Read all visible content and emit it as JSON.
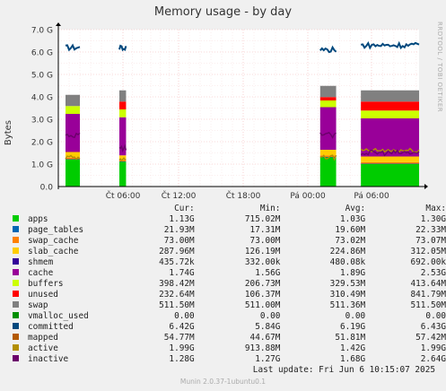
{
  "title": "Memory usage - by day",
  "side_label": "RRDTOOL / TOBI OETIKER",
  "footer": "Munin 2.0.37-1ubuntu0.1",
  "last_update": "Last update: Fri Jun  6 10:15:07 2025",
  "legend_headers": [
    "Cur:",
    "Min:",
    "Avg:",
    "Max:"
  ],
  "legend": [
    {
      "name": "apps",
      "color": "#00cc00",
      "cur": "1.13G",
      "min": "715.02M",
      "avg": "1.03G",
      "max": "1.30G"
    },
    {
      "name": "page_tables",
      "color": "#0066b3",
      "cur": "21.93M",
      "min": "17.31M",
      "avg": "19.60M",
      "max": "22.33M"
    },
    {
      "name": "swap_cache",
      "color": "#ff8000",
      "cur": "73.00M",
      "min": "73.00M",
      "avg": "73.02M",
      "max": "73.07M"
    },
    {
      "name": "slab_cache",
      "color": "#ffcc00",
      "cur": "287.96M",
      "min": "126.19M",
      "avg": "224.86M",
      "max": "312.05M"
    },
    {
      "name": "shmem",
      "color": "#330099",
      "cur": "435.72k",
      "min": "332.00k",
      "avg": "480.08k",
      "max": "692.00k"
    },
    {
      "name": "cache",
      "color": "#990099",
      "cur": "1.74G",
      "min": "1.56G",
      "avg": "1.89G",
      "max": "2.53G"
    },
    {
      "name": "buffers",
      "color": "#ccff00",
      "cur": "398.42M",
      "min": "206.73M",
      "avg": "329.53M",
      "max": "413.64M"
    },
    {
      "name": "unused",
      "color": "#ff0000",
      "cur": "232.64M",
      "min": "106.37M",
      "avg": "310.49M",
      "max": "841.79M"
    },
    {
      "name": "swap",
      "color": "#808080",
      "cur": "511.50M",
      "min": "511.00M",
      "avg": "511.36M",
      "max": "511.50M"
    },
    {
      "name": "vmalloc_used",
      "color": "#008f00",
      "cur": "0.00",
      "min": "0.00",
      "avg": "0.00",
      "max": "0.00"
    },
    {
      "name": "committed",
      "color": "#00487d",
      "cur": "6.42G",
      "min": "5.84G",
      "avg": "6.19G",
      "max": "6.43G"
    },
    {
      "name": "mapped",
      "color": "#b35a00",
      "cur": "54.77M",
      "min": "44.67M",
      "avg": "51.81M",
      "max": "57.42M"
    },
    {
      "name": "active",
      "color": "#b38f00",
      "cur": "1.99G",
      "min": "913.88M",
      "avg": "1.42G",
      "max": "1.99G"
    },
    {
      "name": "inactive",
      "color": "#6b006b",
      "cur": "1.28G",
      "min": "1.27G",
      "avg": "1.68G",
      "max": "2.64G"
    }
  ],
  "chart_data": {
    "type": "area",
    "title": "Memory usage - by day",
    "ylabel": "Bytes",
    "ylim": [
      0,
      7.0
    ],
    "y_unit": "G",
    "y_ticks": [
      "0.0",
      "1.0 G",
      "2.0 G",
      "3.0 G",
      "4.0 G",
      "5.0 G",
      "6.0 G",
      "7.0 G"
    ],
    "x_ticks": [
      "Čt 06:00",
      "Čt 12:00",
      "Čt 18:00",
      "Pá 00:00",
      "Pá 06:00"
    ],
    "grid": true,
    "segments": [
      {
        "start": "Čt 00:40",
        "end": "Čt 02:00",
        "stack": {
          "apps": 1.2,
          "page_tables": 0.02,
          "swap_cache": 0.07,
          "slab_cache": 0.25,
          "shmem": 0.0,
          "cache": 1.7,
          "buffers": 0.35,
          "unused": 0.0,
          "swap": 0.5
        },
        "committed": 6.2,
        "active": 1.3,
        "inactive": 2.3
      },
      {
        "start": "Čt 05:40",
        "end": "Čt 06:20",
        "stack": {
          "apps": 1.1,
          "page_tables": 0.02,
          "swap_cache": 0.07,
          "slab_cache": 0.2,
          "shmem": 0.0,
          "cache": 1.7,
          "buffers": 0.35,
          "unused": 0.35,
          "swap": 0.5
        },
        "committed": 6.2,
        "active": 1.2,
        "inactive": 1.7
      },
      {
        "start": "Pá 01:10",
        "end": "Pá 02:40",
        "stack": {
          "apps": 1.3,
          "page_tables": 0.02,
          "swap_cache": 0.07,
          "slab_cache": 0.25,
          "shmem": 0.0,
          "cache": 1.9,
          "buffers": 0.3,
          "unused": 0.15,
          "swap": 0.5
        },
        "committed": 6.1,
        "active": 1.3,
        "inactive": 2.3
      },
      {
        "start": "Pá 05:00",
        "end": "Pá 10:15",
        "stack": {
          "apps": 1.0,
          "page_tables": 0.02,
          "swap_cache": 0.07,
          "slab_cache": 0.25,
          "shmem": 0.0,
          "cache": 1.7,
          "buffers": 0.35,
          "unused": 0.4,
          "swap": 0.5
        },
        "committed": 6.3,
        "active": 1.6,
        "inactive": 1.5
      }
    ]
  }
}
